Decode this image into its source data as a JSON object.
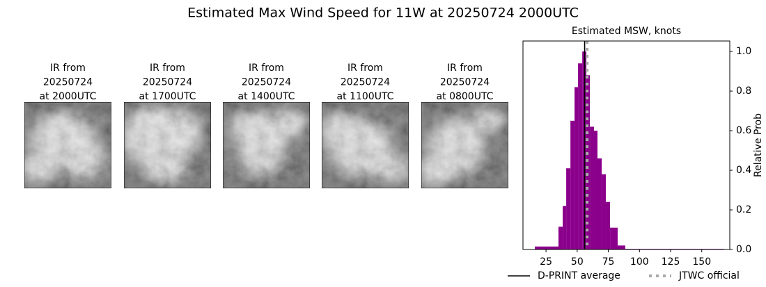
{
  "title": "Estimated Max Wind Speed for 11W at 20250724 2000UTC",
  "panels": [
    {
      "title": [
        "IR from",
        "20250724",
        "at 2000UTC"
      ]
    },
    {
      "title": [
        "IR from",
        "20250724",
        "at 1700UTC"
      ]
    },
    {
      "title": [
        "IR from",
        "20250724",
        "at 1400UTC"
      ]
    },
    {
      "title": [
        "IR from",
        "20250724",
        "at 1100UTC"
      ]
    },
    {
      "title": [
        "IR from",
        "20250724",
        "at 0800UTC"
      ]
    }
  ],
  "chart_data": {
    "type": "histogram",
    "title": "Estimated MSW, knots",
    "y_label": "Relative Prob",
    "color": "#8b008b",
    "bins": [
      16,
      35,
      38.4,
      41.2,
      44.6,
      47.9,
      50.7,
      54.1,
      57.4,
      60.2,
      63.5,
      66.3,
      69.7,
      73,
      76.4,
      82.5,
      88.6,
      168
    ],
    "values": [
      0.015,
      0.115,
      0.22,
      0.41,
      0.65,
      0.82,
      0.94,
      1.0,
      0.88,
      0.62,
      0.6,
      0.46,
      0.38,
      0.24,
      0.11,
      0.02,
      0.003
    ],
    "xlim": [
      6.5,
      172.5
    ],
    "xticks": [
      25,
      50,
      75,
      100,
      125,
      150
    ],
    "ylim": [
      0,
      1.053
    ],
    "yticks": [
      {
        "value": 0,
        "label": "0.0"
      },
      {
        "value": 0.2,
        "label": "0.2"
      },
      {
        "value": 0.4,
        "label": "0.4"
      },
      {
        "value": 0.6,
        "label": "0.6"
      },
      {
        "value": 0.8,
        "label": "0.8"
      },
      {
        "value": 1.0,
        "label": "1.0"
      }
    ],
    "lines": [
      {
        "name": "D-PRINT average",
        "value": 56,
        "color": "#000000"
      },
      {
        "name": "JTWC official",
        "value": 58,
        "color": "#aaaaaa"
      }
    ]
  }
}
